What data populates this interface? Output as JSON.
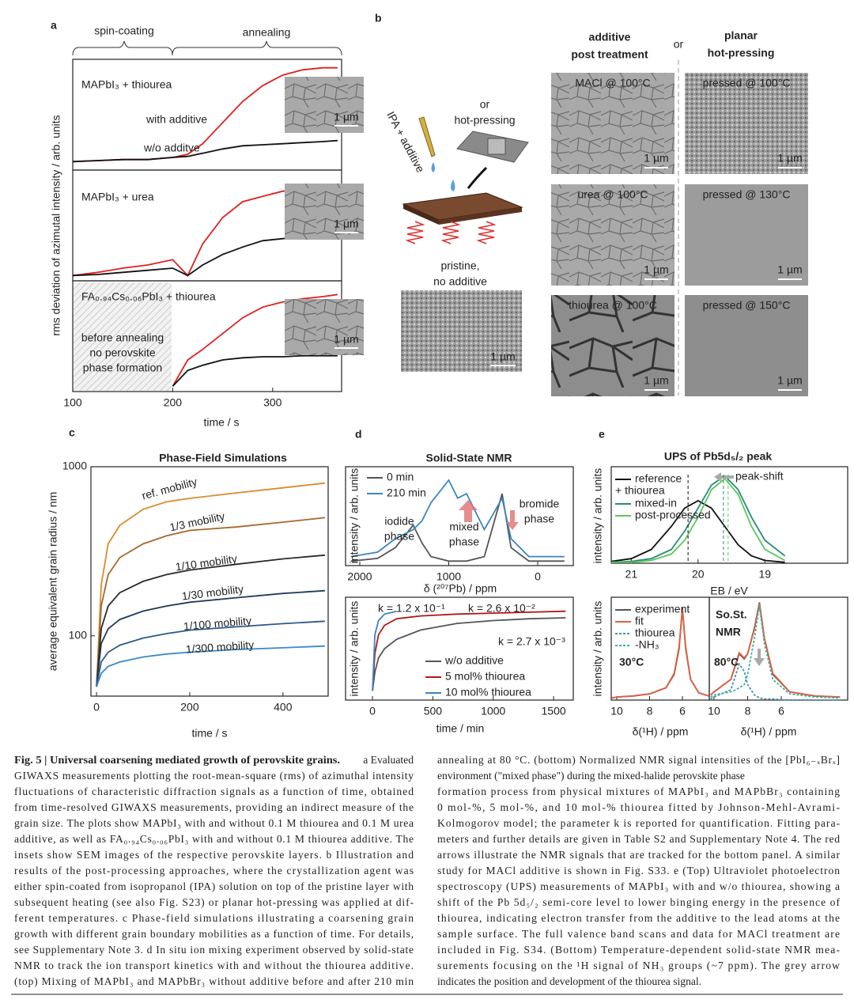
{
  "panels": [
    "a",
    "b",
    "c",
    "d",
    "e"
  ],
  "panel_a": {
    "phases": [
      "spin-coating",
      "annealing"
    ],
    "inset_scales": [
      "1 µm",
      "1 µm",
      "1 µm"
    ]
  },
  "panel_b": {
    "header_left": [
      "additive",
      "post treatment"
    ],
    "header_or": "or",
    "header_right": [
      "planar",
      "hot-pressing"
    ],
    "or_text": [
      "or",
      "hot-pressing"
    ],
    "pipette": "IPA + additive",
    "pristine": [
      "pristine,",
      "no additive"
    ],
    "pristine_scale": "1 µm",
    "images": [
      {
        "label": "MACl @ 100°C",
        "scale": "1 µm"
      },
      {
        "label": "pressed @ 100°C",
        "scale": "1 µm"
      },
      {
        "label": "urea @ 100°C",
        "scale": "1 µm"
      },
      {
        "label": "pressed @ 130°C",
        "scale": "1 µm"
      },
      {
        "label": "thiourea @ 100°C",
        "scale": "1 µm"
      },
      {
        "label": "pressed @ 150°C",
        "scale": "1 µm"
      }
    ]
  },
  "chart_data": [
    {
      "type": "line",
      "title": "MAPbI₃ + thiourea",
      "ylabel": "rms deviation of azimutal intensity / arb. units",
      "x": [
        100,
        125,
        150,
        175,
        200,
        215,
        230,
        250,
        270,
        290,
        310,
        330,
        350,
        365
      ],
      "xlim": [
        100,
        369
      ],
      "ylim": [
        0,
        1.05
      ],
      "series": [
        {
          "name": "with additive",
          "color": "#e02020",
          "values": [
            0.08,
            0.09,
            0.1,
            0.1,
            0.12,
            0.15,
            0.25,
            0.45,
            0.65,
            0.8,
            0.9,
            0.95,
            0.97,
            0.97
          ]
        },
        {
          "name": "w/o additve",
          "color": "#111111",
          "values": [
            0.08,
            0.09,
            0.1,
            0.1,
            0.12,
            0.13,
            0.16,
            0.2,
            0.23,
            0.24,
            0.25,
            0.26,
            0.27,
            0.28
          ]
        }
      ]
    },
    {
      "type": "line",
      "title": "MAPbI₃ + urea",
      "x": [
        100,
        125,
        150,
        175,
        200,
        215,
        230,
        250,
        270,
        290,
        310,
        330,
        350,
        365
      ],
      "xlim": [
        100,
        369
      ],
      "ylim": [
        0,
        1.05
      ],
      "series": [
        {
          "color": "#e02020",
          "values": [
            0.05,
            0.08,
            0.12,
            0.15,
            0.2,
            0.05,
            0.35,
            0.6,
            0.75,
            0.8,
            0.85,
            0.86,
            0.85,
            0.86
          ]
        },
        {
          "color": "#111111",
          "values": [
            0.05,
            0.06,
            0.08,
            0.1,
            0.12,
            0.05,
            0.15,
            0.25,
            0.32,
            0.38,
            0.4,
            0.42,
            0.44,
            0.45
          ]
        }
      ]
    },
    {
      "type": "line",
      "title": "FA₀.₉₄Cs₀.₀₆PbI₃ + thiourea",
      "annotations": [
        "before annealing",
        "no perovskite",
        "phase formation"
      ],
      "xlabel": "time / s",
      "x": [
        100,
        125,
        150,
        175,
        200,
        215,
        230,
        250,
        270,
        290,
        310,
        330,
        350,
        365
      ],
      "xlim": [
        100,
        369
      ],
      "xticks": [
        100,
        200,
        300
      ],
      "ylim": [
        0,
        1.05
      ],
      "series": [
        {
          "color": "#e02020",
          "values": [
            null,
            null,
            null,
            null,
            0.05,
            0.3,
            0.4,
            0.55,
            0.7,
            0.8,
            0.85,
            0.88,
            0.9,
            0.92
          ]
        },
        {
          "color": "#111111",
          "values": [
            null,
            null,
            null,
            null,
            0.05,
            0.2,
            0.25,
            0.3,
            0.32,
            0.33,
            0.33,
            0.34,
            0.34,
            0.34
          ]
        }
      ]
    },
    {
      "type": "line",
      "title": "Phase-Field Simulations",
      "ylabel": "average equivalent grain radius / nm",
      "xlabel": "time / s",
      "log_y": true,
      "x": [
        0,
        10,
        25,
        50,
        100,
        150,
        200,
        300,
        400,
        490
      ],
      "xlim": [
        -12,
        497
      ],
      "xticks": [
        0,
        200,
        400
      ],
      "ylim": [
        44,
        1000
      ],
      "yticks": [
        100,
        1000
      ],
      "series": [
        {
          "name": "ref. mobility",
          "color": "#d98c2b",
          "values": [
            50,
            200,
            350,
            450,
            560,
            620,
            650,
            700,
            750,
            800
          ]
        },
        {
          "name": "1/3 mobility",
          "color": "#a5682c",
          "values": [
            50,
            150,
            230,
            290,
            350,
            390,
            420,
            440,
            470,
            500
          ]
        },
        {
          "name": "1/10 mobility",
          "color": "#2a2a2a",
          "values": [
            50,
            110,
            150,
            180,
            210,
            230,
            245,
            265,
            285,
            300
          ]
        },
        {
          "name": "1/30 mobility",
          "color": "#1f3a5a",
          "values": [
            50,
            90,
            110,
            125,
            140,
            150,
            158,
            168,
            178,
            185
          ]
        },
        {
          "name": "1/100 mobility",
          "color": "#2a5a8a",
          "values": [
            50,
            70,
            80,
            88,
            97,
            103,
            108,
            113,
            118,
            122
          ]
        },
        {
          "name": "1/300 mobility",
          "color": "#3a8ac8",
          "values": [
            50,
            60,
            66,
            70,
            75,
            78,
            80,
            83,
            85,
            87
          ]
        }
      ]
    },
    {
      "type": "line",
      "title": "Solid-State NMR",
      "ylabel": "intensity / arb. units",
      "xlabel": "δ (²⁰⁷Pb) / ppm",
      "annotations": [
        [
          "iodide",
          "phase"
        ],
        [
          "mixed",
          "phase"
        ],
        [
          "bromide",
          "phase"
        ]
      ],
      "x": [
        2100,
        1800,
        1600,
        1400,
        1300,
        1200,
        1000,
        900,
        800,
        600,
        400,
        300,
        100,
        -300
      ],
      "xlim": [
        2160,
        -400
      ],
      "xticks": [
        2000,
        1000,
        0
      ],
      "ylim": [
        0,
        1.1
      ],
      "series": [
        {
          "name": "0 min",
          "color": "#555555",
          "values": [
            0.05,
            0.08,
            0.2,
            0.45,
            0.25,
            0.1,
            0.05,
            0.05,
            0.05,
            0.1,
            0.8,
            0.2,
            0.05,
            0.05
          ]
        },
        {
          "name": "210 min",
          "color": "#3a86c0",
          "values": [
            0.1,
            0.15,
            0.3,
            0.4,
            0.5,
            0.7,
            0.95,
            0.75,
            0.8,
            0.4,
            0.75,
            0.3,
            0.1,
            0.1
          ]
        }
      ]
    },
    {
      "type": "line",
      "ylabel": "intensity / arb. units",
      "xlabel": "time / min",
      "annotations": [
        "k = 1.2 x 10⁻¹",
        "k = 2.6 x 10⁻²",
        "k = 2.7 x 10⁻³"
      ],
      "x": [
        0,
        20,
        50,
        100,
        200,
        400,
        700,
        1000,
        1300,
        1600
      ],
      "xlim": [
        -223,
        1663
      ],
      "xticks": [
        0,
        500,
        1000,
        1500
      ],
      "ylim": [
        0,
        1.1
      ],
      "series": [
        {
          "name": "w/o additive",
          "color": "#555555",
          "values": [
            0.1,
            0.3,
            0.45,
            0.55,
            0.65,
            0.75,
            0.82,
            0.85,
            0.87,
            0.88
          ]
        },
        {
          "name": "5 mol% thiourea",
          "color": "#b01818",
          "values": [
            0.1,
            0.5,
            0.7,
            0.8,
            0.87,
            0.9,
            0.92,
            0.93,
            0.94,
            0.95
          ]
        },
        {
          "name": "10 mol% thiourea",
          "color": "#3a86c0",
          "values": [
            0.1,
            0.7,
            0.85,
            0.92,
            0.95,
            null,
            null,
            null,
            null,
            null
          ]
        }
      ]
    },
    {
      "type": "line",
      "title": "UPS of Pb5d₅/₂ peak",
      "ylabel": "intensity / arb. units",
      "xlabel": "EB / eV",
      "legend_group": "+ thiourea",
      "annotations": [
        "peak-shift"
      ],
      "x": [
        21.3,
        21,
        20.7,
        20.4,
        20.2,
        20,
        19.8,
        19.6,
        19.4,
        19.2,
        19,
        18.7
      ],
      "xlim": [
        21.3,
        17.76
      ],
      "xticks": [
        21,
        20,
        19
      ],
      "ylim": [
        0,
        1.05
      ],
      "series": [
        {
          "name": "reference",
          "color": "#111111",
          "values": [
            0.02,
            0.05,
            0.15,
            0.4,
            0.6,
            0.68,
            0.6,
            0.4,
            0.2,
            0.08,
            0.03,
            0.01
          ]
        },
        {
          "name": "mixed-in",
          "color": "#2a8a7a",
          "values": [
            0.01,
            0.02,
            0.05,
            0.15,
            0.35,
            0.6,
            0.85,
            0.95,
            0.8,
            0.5,
            0.25,
            0.08
          ]
        },
        {
          "name": "post-processed",
          "color": "#5ac85a",
          "values": [
            0.01,
            0.01,
            0.03,
            0.1,
            0.25,
            0.5,
            0.8,
            0.92,
            0.75,
            0.4,
            0.15,
            0.03
          ]
        }
      ]
    },
    {
      "type": "line",
      "label": "30°C",
      "ylabel": "intensity / arb. units",
      "xlabel": "δ(¹H) / ppm",
      "x": [
        10.3,
        10,
        9,
        8,
        7,
        6.5,
        6.2,
        6,
        5.8,
        5.5,
        5,
        4.4
      ],
      "xlim": [
        10.34,
        4.36
      ],
      "xticks": [
        10,
        8,
        6
      ],
      "ylim": [
        0,
        1
      ],
      "series": [
        {
          "color": "#555555",
          "values": [
            0.02,
            0.03,
            0.04,
            0.06,
            0.12,
            0.25,
            0.5,
            0.9,
            0.5,
            0.2,
            0.07,
            0.04
          ]
        },
        {
          "color": "#e06040",
          "values": [
            0.02,
            0.03,
            0.04,
            0.06,
            0.12,
            0.26,
            0.52,
            0.88,
            0.52,
            0.2,
            0.07,
            0.04
          ]
        }
      ]
    },
    {
      "type": "line",
      "label": "80°C",
      "annotations": [
        "So.St.",
        "NMR"
      ],
      "xlabel": "δ(¹H) / ppm",
      "x": [
        10.2,
        10,
        9,
        8.7,
        8.5,
        8.2,
        8,
        7.6,
        7.3,
        7,
        6.5,
        5.5,
        4,
        2.5
      ],
      "xlim": [
        10.28,
        2.05
      ],
      "xticks": [
        10,
        8,
        6
      ],
      "ylim": [
        0,
        1
      ],
      "series": [
        {
          "name": "experiment",
          "color": "#555555",
          "values": [
            0.05,
            0.08,
            0.2,
            0.35,
            0.45,
            0.4,
            0.45,
            0.7,
            0.95,
            0.6,
            0.25,
            0.08,
            0.04,
            0.03
          ]
        },
        {
          "name": "fit",
          "color": "#e06040",
          "values": [
            0.05,
            0.08,
            0.2,
            0.36,
            0.46,
            0.41,
            0.45,
            0.69,
            0.94,
            0.6,
            0.26,
            0.08,
            0.04,
            0.03
          ]
        },
        {
          "name": "thiourea",
          "color": "#4a90b0",
          "dashed": true,
          "values": [
            0.01,
            0.03,
            0.1,
            0.25,
            0.35,
            0.28,
            0.15,
            0.05,
            0.02,
            0.01,
            0.01,
            0,
            0,
            0
          ]
        },
        {
          "name": "-NH₃",
          "color": "#40b0a0",
          "dashed": true,
          "values": [
            0.03,
            0.05,
            0.08,
            0.1,
            0.12,
            0.15,
            0.25,
            0.6,
            0.92,
            0.55,
            0.2,
            0.06,
            0.03,
            0.02
          ]
        }
      ]
    }
  ],
  "caption": {
    "title": "Fig. 5 | Universal coarsening mediated growth of perovskite grains.",
    "title_rest": " a Evaluated",
    "left": [
      "GIWAXS measurements plotting the root-mean-square (rms) of azimuthal intensity",
      "fluctuations of characteristic diffraction signals as a function of time, obtained",
      "from time-resolved GIWAXS measurements, providing an indirect measure of the",
      "grain size. The plots show MAPbI₃ with and without 0.1 M thiourea and 0.1 M urea",
      "additive, as well as FA₀.₉₄Cs₀.₀₆PbI₃ with and without 0.1 M thiourea additive. The",
      "insets show SEM images of the respective perovskite layers. b Illustration and",
      "results of the post-processing approaches, where the crystallization agent was",
      "either spin-coated from isopropanol (IPA) solution on top of the pristine layer with",
      "subsequent heating (see also Fig. S23) or planar hot-pressing was applied at dif-",
      "ferent temperatures. c Phase-field simulations illustrating a coarsening grain",
      "growth with different grain boundary mobilities as a function of time. For details,",
      "see Supplementary Note 3. d In situ ion mixing experiment observed by solid-state",
      "NMR to track the ion transport kinetics with and without the thiourea additive.",
      "(top) Mixing of MAPbI₃ and MAPbBr₃ without additive before and after 210 min"
    ],
    "right": [
      "annealing at 80 °C. (bottom) Normalized NMR signal intensities of the [PbI₆₋ₓBrₓ]",
      "environment (\"mixed phase\") during the mixed-halide perovskite phase",
      "formation process from physical mixtures of MAPbI₃ and MAPbBr₃ containing",
      "0 mol-%, 5 mol-%, and 10 mol-% thiourea fitted by Johnson-Mehl-Avrami-",
      "Kolmogorov model; the parameter k is reported for quantification. Fitting para-",
      "meters and further details are given in Table S2 and Supplementary Note 4. The red",
      "arrows illustrate the NMR signals that are tracked for the bottom panel. A similar",
      "study for MACl additive is shown in Fig. S33. e (Top) Ultraviolet photoelectron",
      "spectroscopy (UPS) measurements of MAPbI₃ with and w/o thiourea, showing a",
      "shift of the Pb 5d₅/₂ semi-core level to lower binging energy in the presence of",
      "thiourea, indicating electron transfer from the additive to the lead atoms at the",
      "sample surface. The full valence band scans and data for MACl treatment are",
      "included in Fig. S34. (Bottom) Temperature-dependent solid-state NMR mea-",
      "surements focusing on the ¹H signal of NH₃ groups (~7 ppm). The grey arrow",
      "indicates the position and development of the thiourea signal."
    ]
  }
}
